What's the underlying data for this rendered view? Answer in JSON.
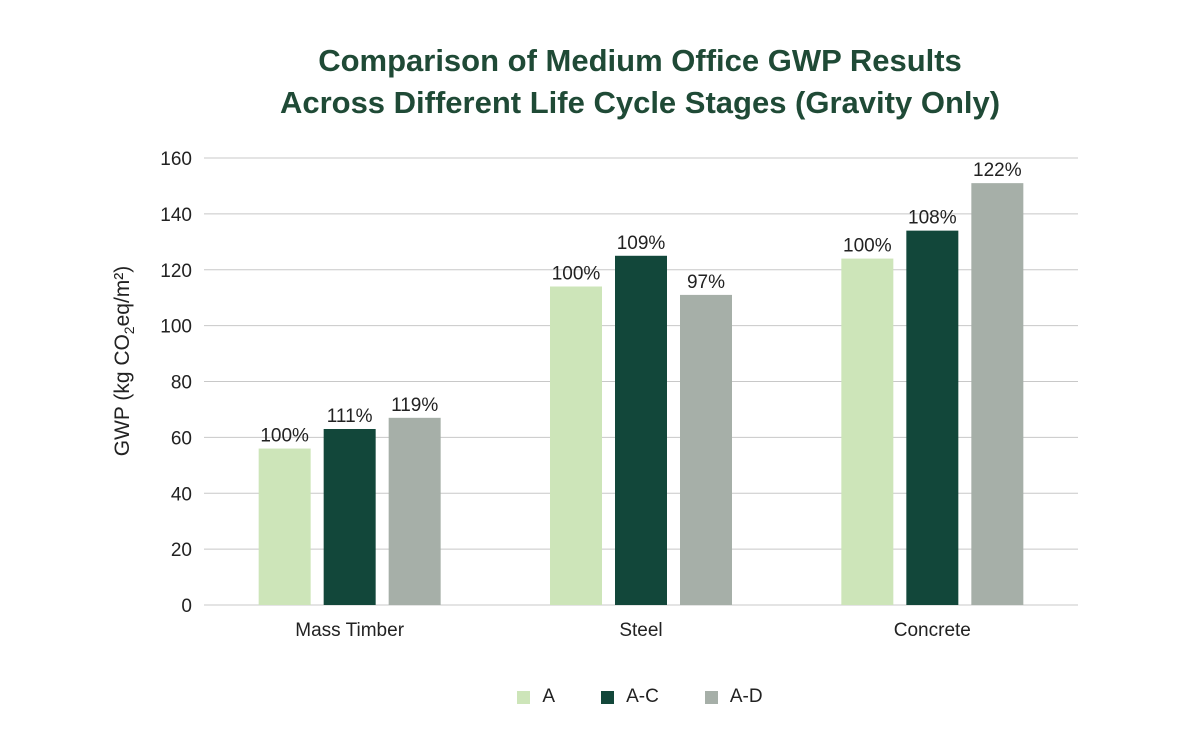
{
  "chart_data": {
    "type": "bar",
    "title_lines": [
      "Comparison of Medium Office GWP Results",
      "Across Different Life Cycle Stages (Gravity Only)"
    ],
    "ylabel_prefix": "GWP (kg CO",
    "ylabel_sub": "2",
    "ylabel_suffix": "eq/m²)",
    "xlabel": "",
    "categories": [
      "Mass Timber",
      "Steel",
      "Concrete"
    ],
    "series": [
      {
        "name": "A",
        "color": "#cde5b9",
        "values": [
          56,
          114,
          124
        ],
        "labels": [
          "100%",
          "100%",
          "100%"
        ]
      },
      {
        "name": "A-C",
        "color": "#12473a",
        "values": [
          63,
          125,
          134
        ],
        "labels": [
          "111%",
          "109%",
          "108%"
        ]
      },
      {
        "name": "A-D",
        "color": "#a6afa8",
        "values": [
          67,
          111,
          151
        ],
        "labels": [
          "119%",
          "97%",
          "122%"
        ]
      }
    ],
    "ylim": [
      0,
      160
    ],
    "yticks": [
      0,
      20,
      40,
      60,
      80,
      100,
      120,
      140,
      160
    ],
    "grid": true,
    "legend_position": "bottom"
  }
}
